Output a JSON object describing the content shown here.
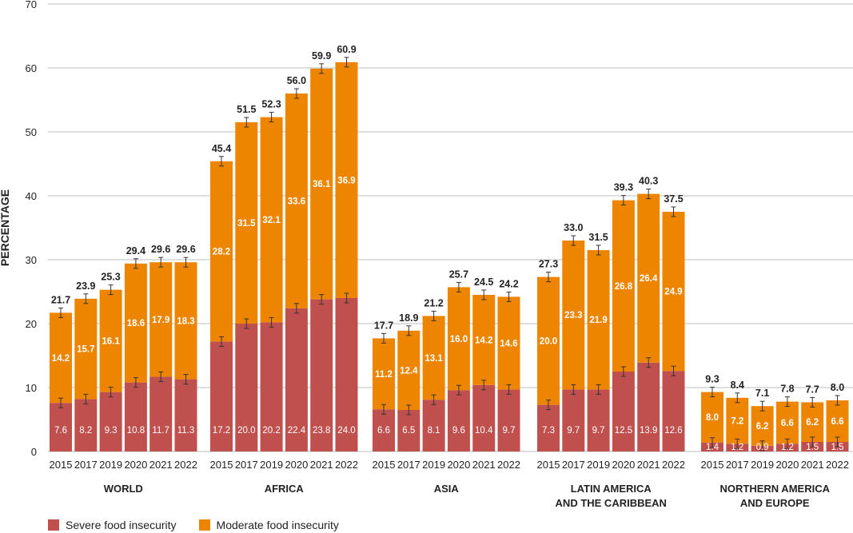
{
  "chart_data": {
    "type": "bar",
    "stacked": true,
    "ylabel": "PERCENTAGE",
    "ylim": [
      0,
      70
    ],
    "yticks": [
      0,
      10,
      20,
      30,
      40,
      50,
      60,
      70
    ],
    "grid": true,
    "error_bars": true,
    "years": [
      "2015",
      "2017",
      "2019",
      "2020",
      "2021",
      "2022"
    ],
    "groups": [
      {
        "name_lines": [
          "WORLD"
        ],
        "severe": [
          7.6,
          8.2,
          9.3,
          10.8,
          11.7,
          11.3
        ],
        "moderate": [
          14.2,
          15.7,
          16.1,
          18.6,
          17.9,
          18.3
        ],
        "totals": [
          "21.7",
          "23.9",
          "25.3",
          "29.4",
          "29.6",
          "29.6"
        ]
      },
      {
        "name_lines": [
          "AFRICA"
        ],
        "severe": [
          17.2,
          20.0,
          20.2,
          22.4,
          23.8,
          24.0
        ],
        "moderate": [
          28.2,
          31.5,
          32.1,
          33.6,
          36.1,
          36.9
        ],
        "totals": [
          "45.4",
          "51.5",
          "52.3",
          "56.0",
          "59.9",
          "60.9"
        ]
      },
      {
        "name_lines": [
          "ASIA"
        ],
        "severe": [
          6.6,
          6.5,
          8.1,
          9.6,
          10.4,
          9.7
        ],
        "moderate": [
          11.2,
          12.4,
          13.1,
          16.0,
          14.2,
          14.6
        ],
        "totals": [
          "17.7",
          "18.9",
          "21.2",
          "25.7",
          "24.5",
          "24.2"
        ]
      },
      {
        "name_lines": [
          "LATIN AMERICA",
          "AND THE CARIBBEAN"
        ],
        "severe": [
          7.3,
          9.7,
          9.7,
          12.5,
          13.9,
          12.6
        ],
        "moderate": [
          20.0,
          23.3,
          21.9,
          26.8,
          26.4,
          24.9
        ],
        "totals": [
          "27.3",
          "33.0",
          "31.5",
          "39.3",
          "40.3",
          "37.5"
        ]
      },
      {
        "name_lines": [
          "NORTHERN AMERICA",
          "AND EUROPE"
        ],
        "severe": [
          1.4,
          1.2,
          0.9,
          1.2,
          1.5,
          1.5
        ],
        "moderate": [
          8.0,
          7.2,
          6.2,
          6.6,
          6.2,
          6.6
        ],
        "totals": [
          "9.3",
          "8.4",
          "7.1",
          "7.8",
          "7.7",
          "8.0"
        ]
      }
    ],
    "series": [
      {
        "name": "Severe food insecurity",
        "color": "#c0504d"
      },
      {
        "name": "Moderate food insecurity",
        "color": "#ee8500"
      }
    ]
  },
  "legend": {
    "severe_label": "Severe food insecurity",
    "moderate_label": "Moderate food insecurity"
  }
}
